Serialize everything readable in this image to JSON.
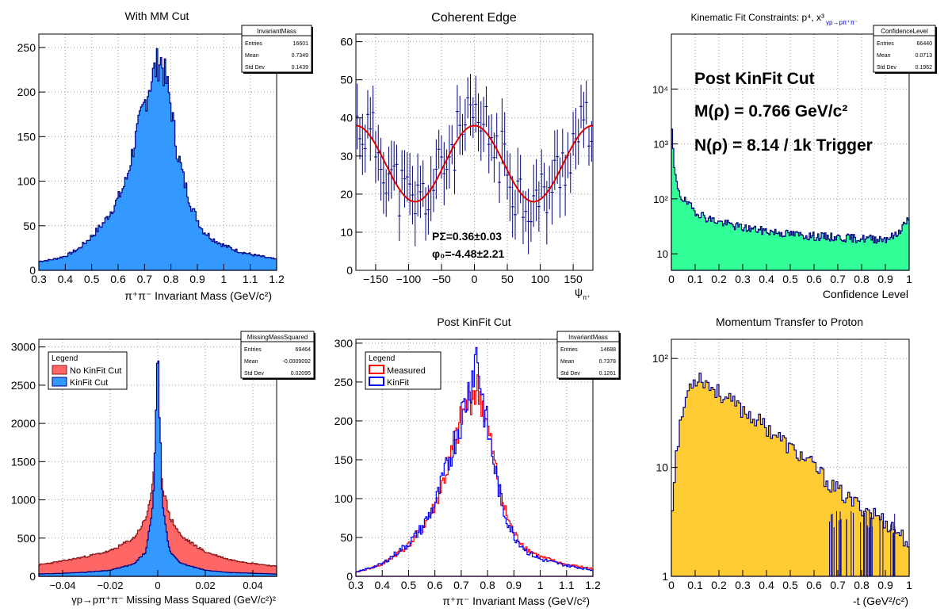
{
  "panels": [
    {
      "id": "p1",
      "title": "With MM Cut",
      "xlabel": "π⁺π⁻ Invariant Mass (GeV/c²)",
      "stats": {
        "name": "InvariantMass",
        "rows": [
          [
            "Entries",
            "16601"
          ],
          [
            "Mean",
            "0.7349"
          ],
          [
            "Std Dev",
            "0.1439"
          ]
        ]
      },
      "xticks": [
        "0.3",
        "0.4",
        "0.5",
        "0.6",
        "0.7",
        "0.8",
        "0.9",
        "1",
        "1.1",
        "1.2"
      ],
      "yticks": [
        "0",
        "50",
        "100",
        "150",
        "200",
        "250"
      ]
    },
    {
      "id": "p2",
      "title": "Coherent Edge",
      "xlabel": "ψ",
      "xlabel_sub": "π⁺",
      "annotations": [
        "PΣ=0.36±0.03",
        "φ₀=-4.48±2.21"
      ],
      "xticks": [
        "−150",
        "−100",
        "−50",
        "0",
        "50",
        "100",
        "150"
      ],
      "yticks": [
        "0",
        "10",
        "20",
        "30",
        "40",
        "50",
        "60"
      ]
    },
    {
      "id": "p3",
      "title": "Kinematic Fit Constraints: p⁴, x³",
      "title_sub": "γp→pπ⁺π⁻",
      "xlabel": "Confidence Level",
      "stats": {
        "name": "ConfidenceLevel",
        "rows": [
          [
            "Entries",
            "66440"
          ],
          [
            "Mean",
            "0.0713"
          ],
          [
            "Std Dev",
            "0.1962"
          ]
        ]
      },
      "overlay": [
        "Post KinFit Cut",
        "M(ρ) = 0.766 GeV/c²",
        "N(ρ) = 8.14 / 1k Trigger"
      ],
      "xticks": [
        "0",
        "0.1",
        "0.2",
        "0.3",
        "0.4",
        "0.5",
        "0.6",
        "0.7",
        "0.8",
        "0.9",
        "1"
      ],
      "yticks": [
        "10",
        "10²",
        "10³",
        "10⁴"
      ]
    },
    {
      "id": "p4",
      "title": "",
      "xlabel": "γp→pπ⁺π⁻ Missing Mass Squared (GeV/c²)²",
      "stats": {
        "name": "MissingMassSquared",
        "rows": [
          [
            "Entries",
            "69464"
          ],
          [
            "Mean",
            "-0.0009092"
          ],
          [
            "Std Dev",
            "0.02095"
          ]
        ]
      },
      "legend": {
        "title": "Legend",
        "items": [
          "No KinFit Cut",
          "KinFit Cut"
        ]
      },
      "xticks": [
        "−0.04",
        "−0.02",
        "0",
        "0.02",
        "0.04"
      ],
      "yticks": [
        "0",
        "500",
        "1000",
        "1500",
        "2000",
        "2500",
        "3000"
      ]
    },
    {
      "id": "p5",
      "title": "Post KinFit Cut",
      "xlabel": "π⁺π⁻ Invariant Mass (GeV/c²)",
      "stats": {
        "name": "InvariantMass",
        "rows": [
          [
            "Entries",
            "14688"
          ],
          [
            "Mean",
            "0.7378"
          ],
          [
            "Std Dev",
            "0.1261"
          ]
        ]
      },
      "legend": {
        "title": "Legend",
        "items": [
          "Measured",
          "KinFit"
        ]
      },
      "xticks": [
        "0.3",
        "0.4",
        "0.5",
        "0.6",
        "0.7",
        "0.8",
        "0.9",
        "1",
        "1.1",
        "1.2"
      ],
      "yticks": [
        "0",
        "50",
        "100",
        "150",
        "200",
        "250",
        "300"
      ]
    },
    {
      "id": "p6",
      "title": "Momentum Transfer to Proton",
      "xlabel": "-t (GeV²/c²)",
      "xticks": [
        "0",
        "0.1",
        "0.2",
        "0.3",
        "0.4",
        "0.5",
        "0.6",
        "0.7",
        "0.8",
        "0.9",
        "1"
      ],
      "yticks": [
        "1",
        "10",
        "10²"
      ]
    }
  ],
  "colors": {
    "blue_fill": "#3399ff",
    "green_fill": "#33ff99",
    "orange_fill": "#ffcc33",
    "red_fill": "#ff6666",
    "line_navy": "#000080",
    "fit_red": "#e00000"
  },
  "chart_data": [
    {
      "type": "bar",
      "title": "With MM Cut",
      "xlabel": "π⁺π⁻ Invariant Mass (GeV/c²)",
      "xlim": [
        0.3,
        1.2
      ],
      "ylim": [
        0,
        265
      ],
      "series": [
        {
          "values": [
            [
              0.3,
              10
            ],
            [
              0.35,
              12
            ],
            [
              0.4,
              16
            ],
            [
              0.45,
              24
            ],
            [
              0.5,
              38
            ],
            [
              0.55,
              55
            ],
            [
              0.6,
              80
            ],
            [
              0.63,
              100
            ],
            [
              0.66,
              140
            ],
            [
              0.69,
              175
            ],
            [
              0.72,
              210
            ],
            [
              0.74,
              225
            ],
            [
              0.76,
              238
            ],
            [
              0.78,
              215
            ],
            [
              0.8,
              185
            ],
            [
              0.82,
              140
            ],
            [
              0.85,
              100
            ],
            [
              0.88,
              70
            ],
            [
              0.92,
              45
            ],
            [
              0.96,
              35
            ],
            [
              1.0,
              28
            ],
            [
              1.05,
              22
            ],
            [
              1.1,
              18
            ],
            [
              1.15,
              15
            ],
            [
              1.2,
              12
            ]
          ]
        }
      ]
    },
    {
      "type": "scatter",
      "title": "Coherent Edge",
      "xlim": [
        -180,
        180
      ],
      "ylim": [
        0,
        62
      ],
      "series": [
        {
          "fit": "38 + ... cos(2ψ)",
          "values": [
            [
              -180,
              38
            ],
            [
              -135,
              28
            ],
            [
              -90,
              18
            ],
            [
              -45,
              28
            ],
            [
              0,
              38
            ],
            [
              45,
              28
            ],
            [
              90,
              18
            ],
            [
              135,
              28
            ],
            [
              180,
              38
            ]
          ]
        }
      ]
    },
    {
      "type": "bar",
      "title": "Kinematic Fit Constraints: p⁴, x³",
      "xlabel": "Confidence Level",
      "xlim": [
        0,
        1
      ],
      "ylim": [
        5,
        100000
      ],
      "yscale": "log",
      "series": [
        {
          "values": [
            [
              0.0,
              2000
            ],
            [
              0.01,
              400
            ],
            [
              0.02,
              200
            ],
            [
              0.04,
              110
            ],
            [
              0.07,
              80
            ],
            [
              0.1,
              60
            ],
            [
              0.15,
              45
            ],
            [
              0.2,
              38
            ],
            [
              0.3,
              30
            ],
            [
              0.4,
              26
            ],
            [
              0.5,
              23
            ],
            [
              0.6,
              21
            ],
            [
              0.7,
              20
            ],
            [
              0.8,
              19
            ],
            [
              0.9,
              19
            ],
            [
              0.95,
              22
            ],
            [
              0.99,
              40
            ]
          ]
        }
      ]
    },
    {
      "type": "bar",
      "title": "",
      "xlim": [
        -0.05,
        0.05
      ],
      "ylim": [
        0,
        3100
      ],
      "series": [
        {
          "name": "No KinFit Cut",
          "values": [
            [
              -0.05,
              150
            ],
            [
              -0.04,
              200
            ],
            [
              -0.03,
              260
            ],
            [
              -0.02,
              330
            ],
            [
              -0.01,
              500
            ],
            [
              -0.005,
              750
            ],
            [
              -0.002,
              1200
            ],
            [
              0,
              2000
            ],
            [
              0.002,
              1200
            ],
            [
              0.005,
              780
            ],
            [
              0.01,
              520
            ],
            [
              0.02,
              320
            ],
            [
              0.03,
              220
            ],
            [
              0.04,
              170
            ],
            [
              0.05,
              130
            ]
          ]
        },
        {
          "name": "KinFit Cut",
          "values": [
            [
              -0.05,
              30
            ],
            [
              -0.04,
              40
            ],
            [
              -0.03,
              55
            ],
            [
              -0.02,
              80
            ],
            [
              -0.01,
              160
            ],
            [
              -0.005,
              320
            ],
            [
              -0.002,
              900
            ],
            [
              0,
              2950
            ],
            [
              0.002,
              900
            ],
            [
              0.005,
              330
            ],
            [
              0.01,
              165
            ],
            [
              0.02,
              80
            ],
            [
              0.03,
              50
            ],
            [
              0.04,
              40
            ],
            [
              0.05,
              30
            ]
          ]
        }
      ]
    },
    {
      "type": "line",
      "title": "Post KinFit Cut",
      "xlim": [
        0.3,
        1.2
      ],
      "ylim": [
        0,
        305
      ],
      "series": [
        {
          "name": "Measured",
          "values": [
            [
              0.3,
              5
            ],
            [
              0.4,
              15
            ],
            [
              0.5,
              40
            ],
            [
              0.55,
              60
            ],
            [
              0.6,
              90
            ],
            [
              0.65,
              140
            ],
            [
              0.7,
              200
            ],
            [
              0.73,
              230
            ],
            [
              0.76,
              240
            ],
            [
              0.78,
              225
            ],
            [
              0.8,
              190
            ],
            [
              0.83,
              140
            ],
            [
              0.86,
              90
            ],
            [
              0.9,
              55
            ],
            [
              0.95,
              35
            ],
            [
              1.0,
              25
            ],
            [
              1.1,
              15
            ],
            [
              1.2,
              10
            ]
          ]
        },
        {
          "name": "KinFit",
          "values": [
            [
              0.3,
              5
            ],
            [
              0.4,
              16
            ],
            [
              0.5,
              42
            ],
            [
              0.55,
              62
            ],
            [
              0.6,
              92
            ],
            [
              0.65,
              145
            ],
            [
              0.7,
              205
            ],
            [
              0.73,
              240
            ],
            [
              0.76,
              290
            ],
            [
              0.78,
              230
            ],
            [
              0.8,
              190
            ],
            [
              0.83,
              135
            ],
            [
              0.86,
              85
            ],
            [
              0.9,
              52
            ],
            [
              0.95,
              32
            ],
            [
              1.0,
              22
            ],
            [
              1.1,
              14
            ],
            [
              1.2,
              8
            ]
          ]
        }
      ]
    },
    {
      "type": "bar",
      "title": "Momentum Transfer to Proton",
      "xlabel": "-t (GeV²/c²)",
      "xlim": [
        0,
        1
      ],
      "ylim": [
        1,
        150
      ],
      "yscale": "log",
      "series": [
        {
          "values": [
            [
              0.05,
              2
            ],
            [
              0.07,
              20
            ],
            [
              0.1,
              60
            ],
            [
              0.12,
              70
            ],
            [
              0.15,
              55
            ],
            [
              0.2,
              40
            ],
            [
              0.25,
              30
            ],
            [
              0.3,
              22
            ],
            [
              0.35,
              15
            ],
            [
              0.4,
              11
            ],
            [
              0.45,
              7
            ],
            [
              0.5,
              5
            ],
            [
              0.55,
              4
            ],
            [
              0.6,
              3
            ],
            [
              0.65,
              2
            ],
            [
              0.7,
              2
            ],
            [
              0.8,
              1.5
            ],
            [
              0.9,
              1.2
            ]
          ]
        }
      ]
    }
  ]
}
